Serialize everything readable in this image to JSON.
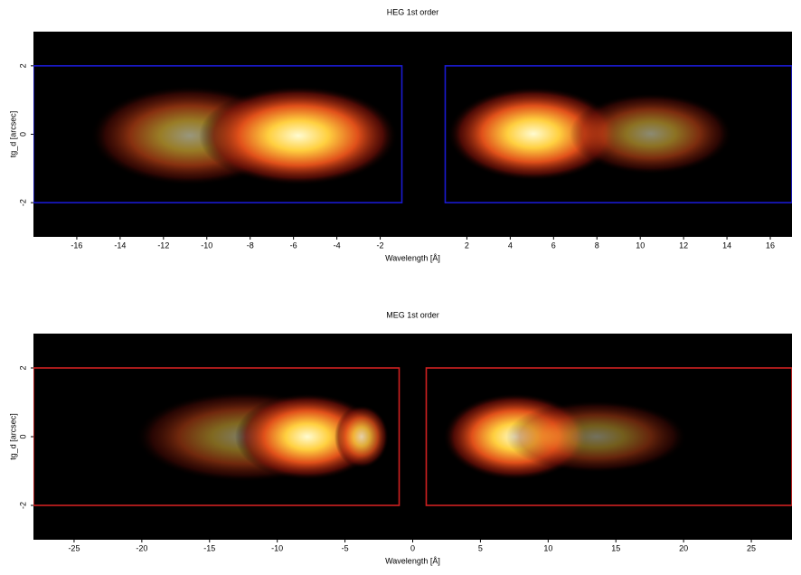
{
  "chart_data": [
    {
      "type": "heatmap",
      "title": "HEG 1st order",
      "x_label": "Wavelength [Å]",
      "y_label": "tg_d [arcsec]",
      "xlim": [
        -18,
        17
      ],
      "ylim": [
        -3,
        3
      ],
      "xticks": [
        -16,
        -14,
        -12,
        -10,
        -8,
        -6,
        -4,
        -2,
        2,
        4,
        6,
        8,
        10,
        12,
        14,
        16
      ],
      "yticks": [
        -2,
        0,
        2
      ],
      "region_color": "#1a1ad0",
      "regions": [
        {
          "xlim": [
            -18,
            -1
          ],
          "ylim": [
            -2,
            2
          ]
        },
        {
          "xlim": [
            1,
            17
          ],
          "ylim": [
            -2,
            2
          ]
        }
      ]
    },
    {
      "type": "heatmap",
      "title": "MEG 1st order",
      "x_label": "Wavelength [Å]",
      "y_label": "tg_d [arcsec]",
      "xlim": [
        -28,
        28
      ],
      "ylim": [
        -3,
        3
      ],
      "xticks": [
        -25,
        -20,
        -15,
        -10,
        -5,
        0,
        5,
        10,
        15,
        20,
        25
      ],
      "yticks": [
        -2,
        0,
        2
      ],
      "region_color": "#d02020",
      "regions": [
        {
          "xlim": [
            -28,
            -1
          ],
          "ylim": [
            -2,
            2
          ]
        },
        {
          "xlim": [
            1,
            28
          ],
          "ylim": [
            -2,
            2
          ]
        }
      ]
    }
  ]
}
